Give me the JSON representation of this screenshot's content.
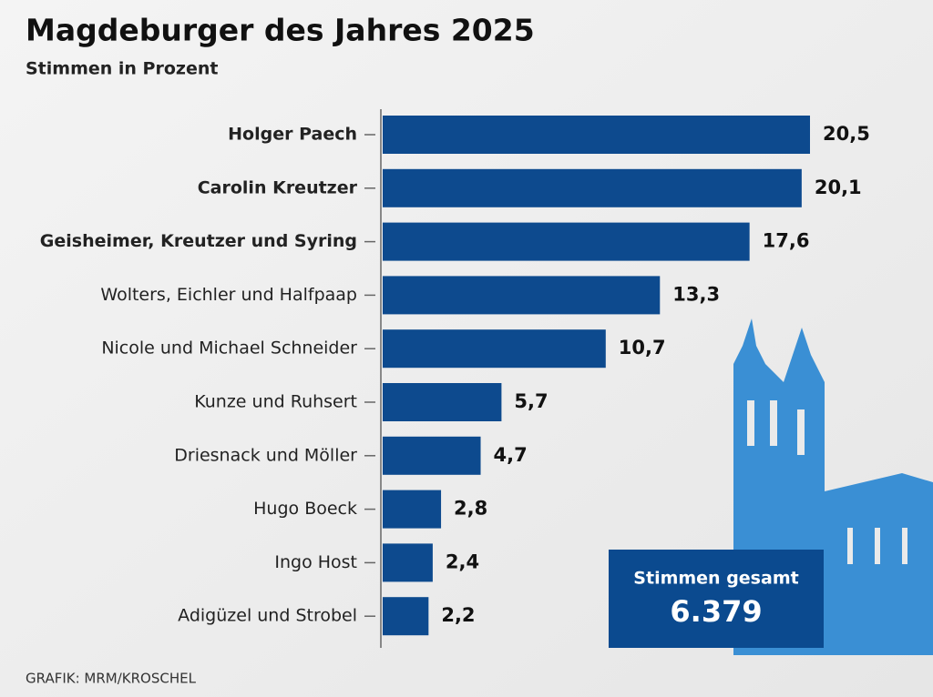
{
  "chart_data": {
    "type": "bar",
    "orientation": "horizontal",
    "title": "Magdeburger des Jahres 2025",
    "subtitle": "Stimmen in Prozent",
    "categories": [
      "Holger Paech",
      "Carolin Kreutzer",
      "Geisheimer, Kreutzer und Syring",
      "Wolters, Eichler und Halfpaap",
      "Nicole und Michael Schneider",
      "Kunze und Ruhsert",
      "Driesnack und Möller",
      "Hugo Boeck",
      "Ingo Host",
      "Adigüzel und Strobel"
    ],
    "values": [
      20.5,
      20.1,
      17.6,
      13.3,
      10.7,
      5.7,
      4.7,
      2.8,
      2.4,
      2.2
    ],
    "value_labels": [
      "20,5",
      "20,1",
      "17,6",
      "13,3",
      "10,7",
      "5,7",
      "4,7",
      "2,8",
      "2,4",
      "2,2"
    ],
    "color": "#0d4a8e",
    "annotation": {
      "title": "Stimmen gesamt",
      "text": "6.379"
    },
    "source": "GRAFIK: MRM/KROSCHEL"
  }
}
